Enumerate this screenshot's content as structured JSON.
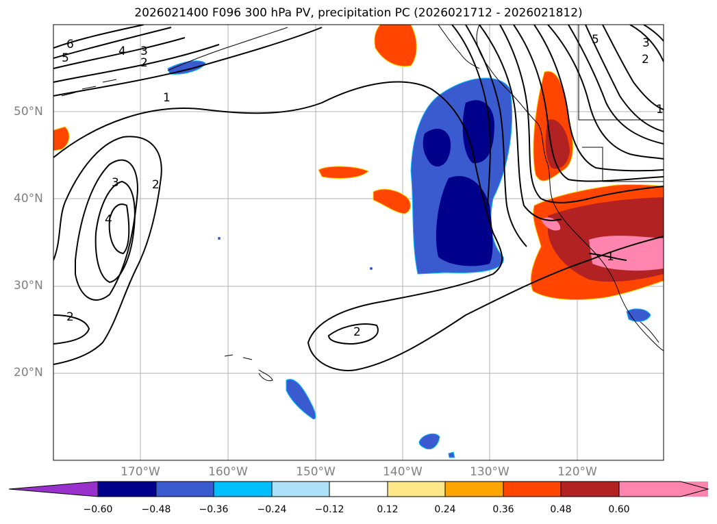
{
  "title": "2026021400 F096 300 hPa PV, precipitation PC (2026021712 - 2026021812)",
  "map": {
    "lat_labels": [
      "50°N",
      "40°N",
      "30°N",
      "20°N"
    ],
    "lon_labels": [
      "170°W",
      "160°W",
      "150°W",
      "140°W",
      "130°W",
      "120°W"
    ],
    "contour_labels": [
      "6",
      "5",
      "4",
      "3",
      "2",
      "1",
      "3",
      "4",
      "2",
      "2",
      "2",
      "5",
      "3",
      "2",
      "1",
      "1"
    ]
  },
  "colorbar": {
    "ticks": [
      "−0.60",
      "−0.48",
      "−0.36",
      "−0.24",
      "−0.12",
      "0.12",
      "0.24",
      "0.36",
      "0.48",
      "0.60"
    ],
    "colors": [
      "#9932CC",
      "#00008B",
      "#3A5BD0",
      "#00BFFF",
      "#ADE2FA",
      "#FFFFFF",
      "#FFE88A",
      "#FFA500",
      "#FF4500",
      "#B22222",
      "#FF85AE"
    ]
  }
}
